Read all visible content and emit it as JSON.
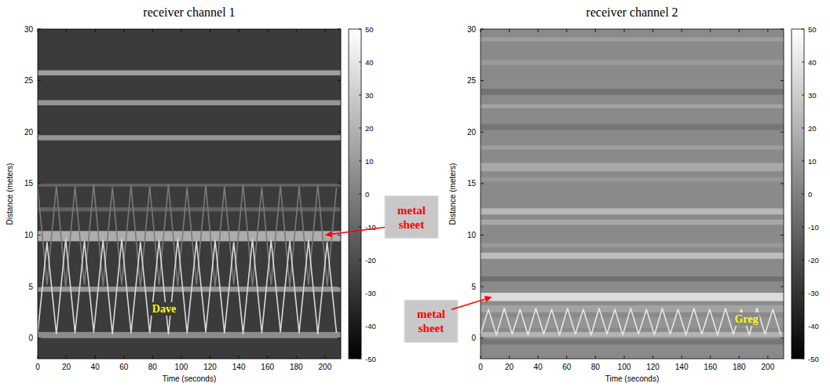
{
  "chart_data": [
    {
      "type": "heatmap",
      "title": "receiver channel 1",
      "x_label": "Time  (seconds)",
      "y_label": "Distance  (meters)",
      "xlim": [
        0,
        211
      ],
      "ylim": [
        -2,
        30
      ],
      "xticks": [
        0,
        20,
        40,
        60,
        80,
        100,
        120,
        140,
        160,
        180,
        200
      ],
      "yticks": [
        0,
        5,
        10,
        15,
        20,
        25,
        30
      ],
      "color_range": [
        -50,
        50
      ],
      "color_ticks": [
        -50,
        -40,
        -30,
        -20,
        -10,
        0,
        10,
        20,
        30,
        40,
        50
      ],
      "background_value": -27,
      "rows": [
        {
          "from": 25.5,
          "to": 26.0,
          "value": 12
        },
        {
          "from": 22.6,
          "to": 23.1,
          "value": 8
        },
        {
          "from": 19.2,
          "to": 19.7,
          "value": 8
        },
        {
          "from": 14.7,
          "to": 15.0,
          "value": -12
        },
        {
          "from": 12.3,
          "to": 12.7,
          "value": -12
        },
        {
          "from": 9.4,
          "to": 10.4,
          "value": 18
        },
        {
          "from": 4.5,
          "to": 5.0,
          "value": 8
        },
        {
          "from": 0.0,
          "to": 0.6,
          "value": 5
        }
      ],
      "series": [
        {
          "color": "#7a7a7a",
          "x": [
            0,
            6.5,
            13,
            19.5,
            26,
            32.5,
            39,
            45.5,
            52,
            58.5,
            65,
            71.5,
            78,
            84.5,
            91,
            97.5,
            104,
            110.5,
            117,
            123.5,
            130,
            136.5,
            143,
            149.5,
            156,
            162.5,
            169,
            175.5,
            182,
            188.5,
            195,
            201.5,
            208
          ],
          "y": [
            14.6,
            5.2,
            14.8,
            5.0,
            14.7,
            5.2,
            14.9,
            5.1,
            14.6,
            5.2,
            14.8,
            5.0,
            14.7,
            5.2,
            14.9,
            5.1,
            14.6,
            5.2,
            14.8,
            5.0,
            14.7,
            5.2,
            14.9,
            5.1,
            14.6,
            5.2,
            14.8,
            5.0,
            14.7,
            5.2,
            14.9,
            5.1,
            14.6
          ]
        },
        {
          "color": "#d8d8d8",
          "x": [
            0,
            6.5,
            13,
            19.5,
            26,
            32.5,
            39,
            45.5,
            52,
            58.5,
            65,
            71.5,
            78,
            84.5,
            91,
            97.5,
            104,
            110.5,
            117,
            123.5,
            130,
            136.5,
            143,
            149.5,
            156,
            162.5,
            169,
            175.5,
            182,
            188.5,
            195,
            201.5,
            208
          ],
          "y": [
            0.5,
            9.3,
            0.4,
            9.6,
            0.5,
            9.4,
            0.6,
            9.5,
            0.4,
            9.6,
            0.5,
            9.3,
            0.5,
            9.5,
            0.4,
            9.6,
            0.5,
            9.4,
            0.6,
            9.5,
            0.5,
            9.3,
            0.4,
            9.6,
            0.5,
            9.5,
            0.6,
            9.4,
            0.5,
            9.5,
            0.4,
            9.3,
            0.5
          ]
        }
      ],
      "callouts": [
        {
          "text": "metal sheet",
          "x": 200,
          "y": 10,
          "color": "#ff0000"
        }
      ],
      "labels": [
        {
          "text": "Dave",
          "x": 88,
          "y": 2.5,
          "color": "#ffff00"
        }
      ]
    },
    {
      "type": "heatmap",
      "title": "receiver channel 2",
      "x_label": "Time  (seconds)",
      "y_label": "Distance  (meters)",
      "xlim": [
        0,
        211
      ],
      "ylim": [
        -2,
        30
      ],
      "xticks": [
        0,
        20,
        40,
        60,
        80,
        100,
        120,
        140,
        160,
        180,
        200
      ],
      "yticks": [
        0,
        5,
        10,
        15,
        20,
        25,
        30
      ],
      "color_range": [
        -50,
        50
      ],
      "color_ticks": [
        -50,
        -40,
        -30,
        -20,
        -10,
        0,
        10,
        20,
        30,
        40,
        50
      ],
      "background_value": 4,
      "rows": [
        {
          "from": 28.8,
          "to": 29.2,
          "value": 12
        },
        {
          "from": 26.5,
          "to": 27.0,
          "value": 10
        },
        {
          "from": 23.6,
          "to": 24.2,
          "value": -5
        },
        {
          "from": 22.3,
          "to": 22.7,
          "value": 14
        },
        {
          "from": 20.2,
          "to": 20.8,
          "value": -4
        },
        {
          "from": 18.3,
          "to": 18.7,
          "value": 12
        },
        {
          "from": 16.2,
          "to": 17.0,
          "value": 16
        },
        {
          "from": 15.2,
          "to": 15.6,
          "value": 10
        },
        {
          "from": 12.0,
          "to": 12.6,
          "value": 22
        },
        {
          "from": 11.0,
          "to": 11.5,
          "value": 16
        },
        {
          "from": 8.8,
          "to": 9.2,
          "value": 10
        },
        {
          "from": 7.7,
          "to": 8.3,
          "value": 24
        },
        {
          "from": 5.5,
          "to": 6.0,
          "value": -6
        },
        {
          "from": 3.6,
          "to": 4.4,
          "value": 36
        },
        {
          "from": 2.5,
          "to": 3.2,
          "value": 14
        },
        {
          "from": 1.0,
          "to": 2.0,
          "value": 8
        },
        {
          "from": 0.1,
          "to": 0.6,
          "value": 20
        },
        {
          "from": -0.6,
          "to": -0.1,
          "value": -4
        }
      ],
      "series": [
        {
          "color": "#e6e6e6",
          "x": [
            0,
            5.5,
            11,
            16.5,
            22,
            27.5,
            33,
            38.5,
            44,
            49.5,
            55,
            60.5,
            66,
            71.5,
            77,
            82.5,
            88,
            93.5,
            99,
            104.5,
            110,
            115.5,
            121,
            126.5,
            132,
            137.5,
            143,
            148.5,
            154,
            159.5,
            165,
            170.5,
            176,
            181.5,
            187,
            192.5,
            198,
            203.5,
            209
          ],
          "y": [
            0.4,
            2.8,
            0.3,
            2.9,
            0.4,
            2.8,
            0.3,
            2.9,
            0.4,
            2.8,
            0.3,
            2.9,
            0.4,
            2.8,
            0.3,
            2.9,
            0.4,
            2.8,
            0.3,
            2.9,
            0.4,
            2.8,
            0.3,
            2.9,
            0.4,
            2.8,
            0.3,
            2.9,
            0.4,
            2.8,
            0.3,
            2.9,
            0.4,
            2.8,
            0.3,
            2.9,
            0.4,
            2.8,
            0.3
          ]
        }
      ],
      "callouts": [
        {
          "text": "metal sheet",
          "x": 8,
          "y": 4,
          "color": "#ff0000"
        }
      ],
      "labels": [
        {
          "text": "Greg",
          "x": 185,
          "y": 1.5,
          "color": "#ffff00"
        }
      ]
    }
  ]
}
